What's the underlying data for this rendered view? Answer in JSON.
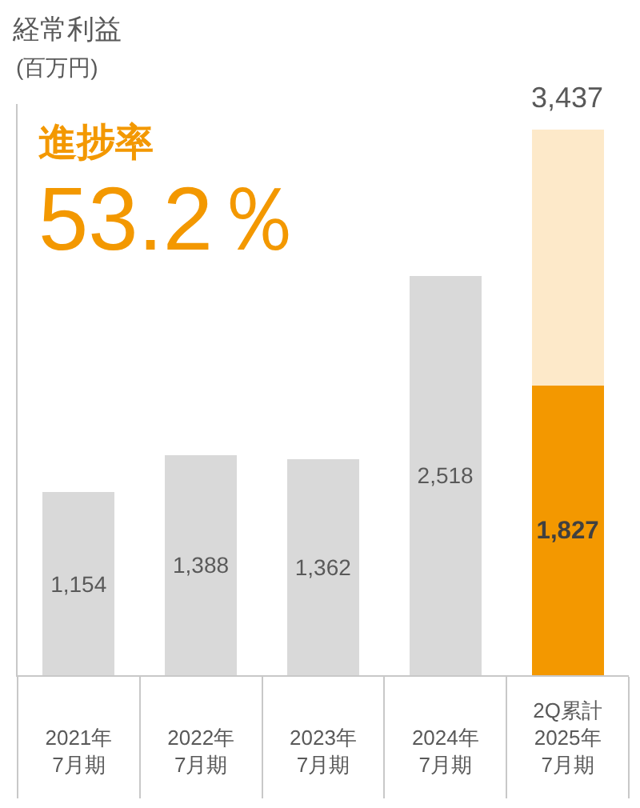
{
  "chart_data": {
    "type": "bar",
    "title": "経常利益",
    "ylabel": "(百万円)",
    "annotations": [
      "進捗率",
      "53.2％"
    ],
    "categories": [
      "2021年\n7月期",
      "2022年\n7月期",
      "2023年\n7月期",
      "2024年\n7月期",
      "2Q累計\n2025年\n7月期"
    ],
    "series": [
      {
        "color": "#d9d9d9",
        "values": [
          1154,
          1388,
          1362,
          2518,
          null
        ],
        "value_labels": [
          "1,154",
          "1,388",
          "1,362",
          "2,518",
          null
        ]
      },
      {
        "color": "#f39800",
        "values": [
          null,
          null,
          null,
          null,
          1827
        ],
        "value_labels": [
          null,
          null,
          null,
          null,
          "1,827"
        ]
      },
      {
        "color": "#fde9c9",
        "values": [
          null,
          null,
          null,
          null,
          1610
        ]
      }
    ],
    "stacked": true,
    "totals": [
      null,
      null,
      null,
      null,
      "3,437"
    ],
    "ylim": [
      0,
      3600
    ],
    "tick_labels": "x"
  }
}
